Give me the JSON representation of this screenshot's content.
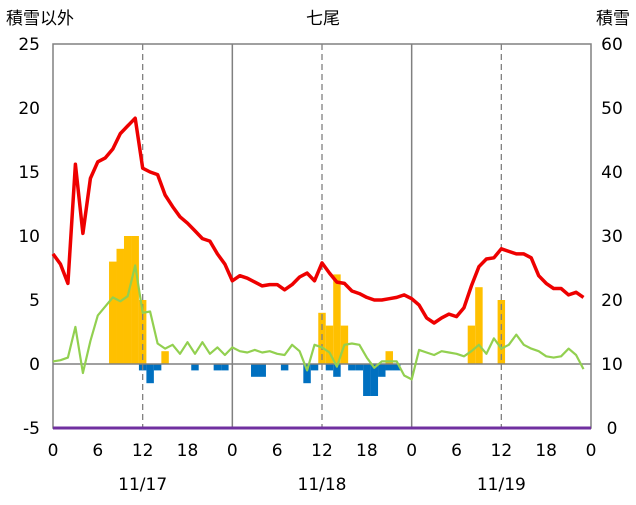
{
  "chart_data": {
    "type": "bar+line",
    "title": "七尾",
    "ylabel_left": "積雪以外",
    "ylabel_right": "積雪",
    "ylim_left": [
      -5,
      25
    ],
    "ylim_right": [
      0,
      60
    ],
    "yticks_left": [
      "-5",
      "0",
      "5",
      "10",
      "15",
      "20",
      "25"
    ],
    "yticks_right": [
      "0",
      "10",
      "20",
      "30",
      "40",
      "50",
      "60"
    ],
    "x_range_hours": [
      0,
      72
    ],
    "xtick_labels": [
      "0",
      "6",
      "12",
      "18",
      "0",
      "6",
      "12",
      "18",
      "0",
      "6",
      "12",
      "18",
      "0"
    ],
    "date_labels": [
      "11/17",
      "11/18",
      "11/19"
    ],
    "grid": "vertical dashed at 12h, solid at day boundaries",
    "colors": {
      "temperature": "#ee0000",
      "humidity_line": "#92d050",
      "precip_bar": "#ffc000",
      "negative_bar": "#0070c0",
      "snow_depth": "#7030a0",
      "frame": "#808080"
    },
    "series": [
      {
        "role": "red-line",
        "hours": [
          0,
          1,
          2,
          3,
          4,
          5,
          6,
          7,
          8,
          9,
          10,
          11,
          12,
          13,
          14,
          15,
          16,
          17,
          18,
          19,
          20,
          21,
          22,
          23,
          24,
          25,
          26,
          27,
          28,
          29,
          30,
          31,
          32,
          33,
          34,
          35,
          36,
          37,
          38,
          39,
          40,
          41,
          42,
          43,
          44,
          45,
          46,
          47,
          48,
          49,
          50,
          51,
          52,
          53,
          54,
          55,
          56,
          57,
          58,
          59,
          60,
          61,
          62,
          63,
          64,
          65,
          66,
          67,
          68,
          69,
          70,
          71
        ],
        "values": [
          8.6,
          7.8,
          6.3,
          15.6,
          10.2,
          14.5,
          15.8,
          16.1,
          16.8,
          18.0,
          18.6,
          19.2,
          15.3,
          15.0,
          14.8,
          13.2,
          12.3,
          11.5,
          11.0,
          10.4,
          9.8,
          9.6,
          8.6,
          7.8,
          6.5,
          6.9,
          6.7,
          6.4,
          6.1,
          6.2,
          6.2,
          5.8,
          6.2,
          6.8,
          7.1,
          6.5,
          7.9,
          7.1,
          6.4,
          6.3,
          5.7,
          5.5,
          5.2,
          5.0,
          5.0,
          5.1,
          5.2,
          5.4,
          5.1,
          4.6,
          3.6,
          3.2,
          3.6,
          3.9,
          3.7,
          4.4,
          6.1,
          7.6,
          8.2,
          8.3,
          9.0,
          8.8,
          8.6,
          8.6,
          8.3,
          6.9,
          6.3,
          5.9,
          5.9,
          5.4,
          5.6,
          5.2
        ]
      },
      {
        "role": "green-line",
        "hours": [
          0,
          1,
          2,
          3,
          4,
          5,
          6,
          7,
          8,
          9,
          10,
          11,
          12,
          13,
          14,
          15,
          16,
          17,
          18,
          19,
          20,
          21,
          22,
          23,
          24,
          25,
          26,
          27,
          28,
          29,
          30,
          31,
          32,
          33,
          34,
          35,
          36,
          37,
          38,
          39,
          40,
          41,
          42,
          43,
          44,
          45,
          46,
          47,
          48,
          49,
          50,
          51,
          52,
          53,
          54,
          55,
          56,
          57,
          58,
          59,
          60,
          61,
          62,
          63,
          64,
          65,
          66,
          67,
          68,
          69,
          70,
          71
        ],
        "values": [
          0.2,
          0.3,
          0.5,
          2.9,
          -0.7,
          1.8,
          3.8,
          4.5,
          5.2,
          4.9,
          5.3,
          7.7,
          4.0,
          4.1,
          1.6,
          1.2,
          1.5,
          0.8,
          1.7,
          0.8,
          1.7,
          0.8,
          1.3,
          0.7,
          1.3,
          1.0,
          0.9,
          1.1,
          0.9,
          1.0,
          0.8,
          0.7,
          1.5,
          1.0,
          -0.5,
          1.5,
          1.3,
          0.9,
          -0.2,
          1.5,
          1.6,
          1.5,
          0.5,
          -0.3,
          0.2,
          0.2,
          0.2,
          -0.9,
          -1.2,
          1.1,
          0.9,
          0.7,
          1.0,
          0.9,
          0.8,
          0.6,
          1.0,
          1.5,
          0.8,
          2.0,
          1.2,
          1.5,
          2.3,
          1.5,
          1.2,
          1.0,
          0.6,
          0.5,
          0.6,
          1.2,
          0.7,
          -0.4
        ]
      },
      {
        "role": "yellow-bars",
        "hours": [
          8,
          9,
          10,
          11,
          12,
          15,
          36,
          37,
          38,
          39,
          40,
          45,
          56,
          57,
          60
        ],
        "values": [
          8.0,
          9.0,
          10.0,
          10.0,
          5.0,
          1.0,
          4.0,
          3.0,
          7.0,
          3.0,
          0.0,
          1.0,
          3.0,
          6.0,
          5.0
        ]
      },
      {
        "role": "blue-bars",
        "hours": [
          12,
          13,
          14,
          19,
          22,
          23,
          27,
          28,
          31,
          34,
          35,
          37,
          38,
          40,
          41,
          42,
          43,
          44,
          45,
          46
        ],
        "values": [
          -0.5,
          -1.5,
          -0.5,
          -0.5,
          -0.5,
          -0.5,
          -1.0,
          -1.0,
          -0.5,
          -1.5,
          -0.5,
          -0.5,
          -1.0,
          -0.5,
          -0.5,
          -2.5,
          -2.5,
          -1.0,
          -0.5,
          -0.5
        ]
      },
      {
        "role": "purple-line",
        "axis": "right",
        "hours": [
          0,
          72
        ],
        "values": [
          0,
          0
        ]
      }
    ]
  }
}
